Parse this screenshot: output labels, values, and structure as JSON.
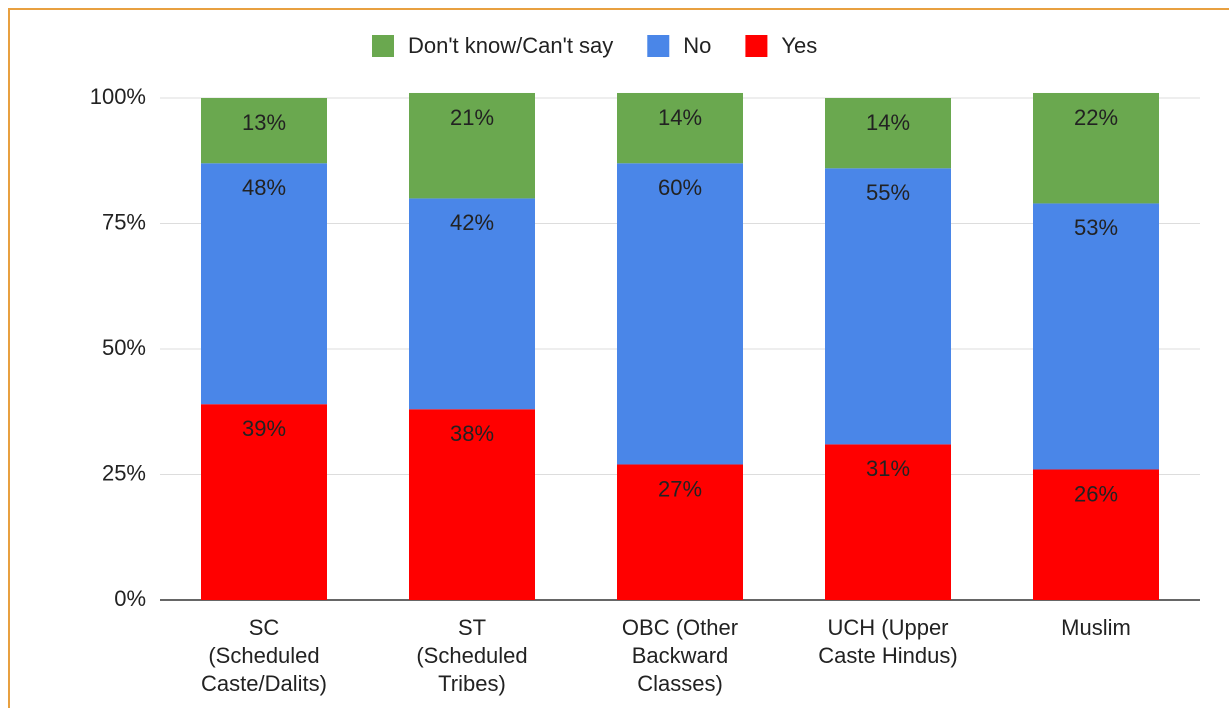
{
  "chart_data": {
    "type": "stacked_bar",
    "categories": [
      "SC (Scheduled Caste/Dalits)",
      "ST (Scheduled Tribes)",
      "OBC (Other Backward Classes)",
      "UCH (Upper Caste Hindus)",
      "Muslim"
    ],
    "series": [
      {
        "name": "Don't know/Can't say",
        "color": "#6aa84f",
        "label_color": "#000000",
        "values": [
          13,
          21,
          14,
          14,
          22
        ],
        "value_labels": [
          "13%",
          "21%",
          "14%",
          "14%",
          "22%"
        ]
      },
      {
        "name": "No",
        "color": "#4a86e8",
        "label_color": "#ffffff",
        "values": [
          48,
          42,
          60,
          55,
          53
        ],
        "value_labels": [
          "48%",
          "42%",
          "60%",
          "55%",
          "53%"
        ]
      },
      {
        "name": "Yes",
        "color": "#ff0000",
        "label_color": "#ffffff",
        "values": [
          39,
          38,
          27,
          31,
          26
        ],
        "value_labels": [
          "39%",
          "38%",
          "27%",
          "31%",
          "26%"
        ]
      }
    ],
    "ylim": [
      0,
      100
    ],
    "yticks": [
      {
        "value": 0,
        "label": "0%"
      },
      {
        "value": 25,
        "label": "25%"
      },
      {
        "value": 50,
        "label": "50%"
      },
      {
        "value": 75,
        "label": "75%"
      },
      {
        "value": 100,
        "label": "100%"
      }
    ],
    "grid": true,
    "legend": "top"
  }
}
